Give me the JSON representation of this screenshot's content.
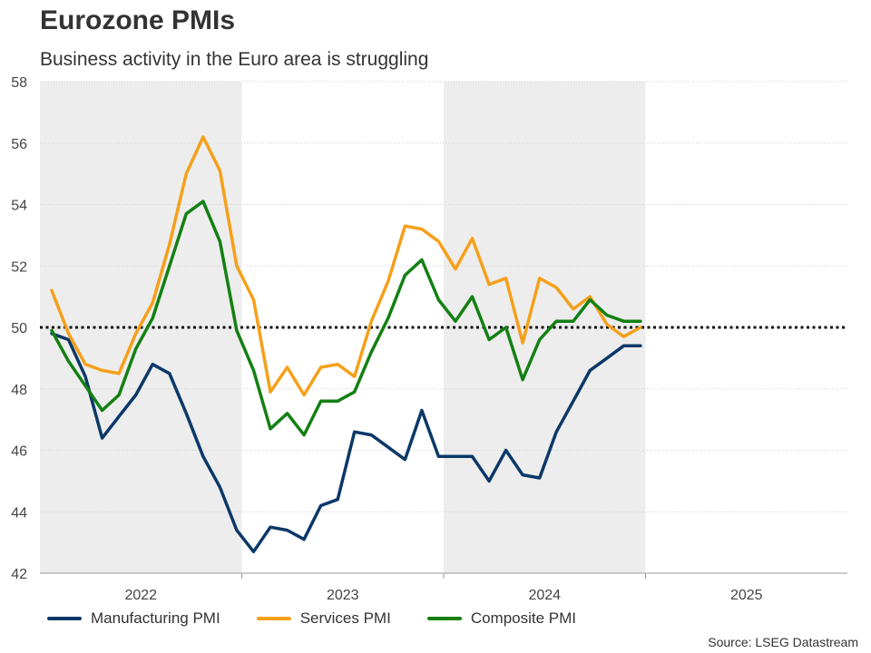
{
  "chart_data": {
    "type": "line",
    "title": "Eurozone PMIs",
    "subtitle": "Business activity in the Euro area is struggling",
    "source": "Source: LSEG Datastream",
    "ylim": [
      42,
      58
    ],
    "yticks": [
      "42",
      "44",
      "46",
      "48",
      "50",
      "52",
      "54",
      "56",
      "58"
    ],
    "x_year_labels": [
      "2022",
      "2023",
      "2024",
      "2025"
    ],
    "reference_line": 50,
    "months": [
      "2022-01",
      "2022-02",
      "2022-03",
      "2022-04",
      "2022-05",
      "2022-06",
      "2022-07",
      "2022-08",
      "2022-09",
      "2022-10",
      "2022-11",
      "2022-12",
      "2023-01",
      "2023-02",
      "2023-03",
      "2023-04",
      "2023-05",
      "2023-06",
      "2023-07",
      "2023-08",
      "2023-09",
      "2023-10",
      "2023-11",
      "2023-12",
      "2024-01",
      "2024-02",
      "2024-03",
      "2024-04",
      "2024-05",
      "2024-06",
      "2024-07",
      "2024-08",
      "2024-09",
      "2024-10",
      "2024-11",
      "2024-12",
      "2025-01",
      "2025-02",
      "2025-03",
      "2025-04",
      "2025-05",
      "2025-06",
      "2025-07",
      "2025-08",
      "2025-09",
      "2025-10",
      "2025-11",
      "2025-12"
    ],
    "series": [
      {
        "name": "Manufacturing PMI",
        "color": "#0b3868",
        "start_index": 0,
        "values": [
          49.8,
          49.6,
          48.4,
          46.4,
          47.1,
          47.8,
          48.8,
          48.5,
          47.2,
          45.8,
          44.8,
          43.4,
          42.7,
          43.5,
          43.4,
          43.1,
          44.2,
          44.4,
          46.6,
          46.5,
          46.1,
          45.7,
          47.3,
          45.8,
          45.8,
          45.8,
          45.0,
          46.0,
          45.2,
          45.1,
          46.6,
          47.6,
          48.6,
          49.0,
          49.4,
          49.4
        ]
      },
      {
        "name": "Services PMI",
        "color": "#f5a01a",
        "start_index": 0,
        "values": [
          51.2,
          49.8,
          48.8,
          48.6,
          48.5,
          49.8,
          50.8,
          52.7,
          55.0,
          56.2,
          55.1,
          52.0,
          50.9,
          47.9,
          48.7,
          47.8,
          48.7,
          48.8,
          48.4,
          50.2,
          51.5,
          53.3,
          53.2,
          52.8,
          51.9,
          52.9,
          51.4,
          51.6,
          49.5,
          51.6,
          51.3,
          50.6,
          51.0,
          50.1,
          49.7,
          50.0
        ]
      },
      {
        "name": "Composite PMI",
        "color": "#138013",
        "start_index": 0,
        "values": [
          49.9,
          48.9,
          48.1,
          47.3,
          47.8,
          49.3,
          50.3,
          52.0,
          53.7,
          54.1,
          52.8,
          49.9,
          48.6,
          46.7,
          47.2,
          46.5,
          47.6,
          47.6,
          47.9,
          49.2,
          50.3,
          51.7,
          52.2,
          50.9,
          50.2,
          51.0,
          49.6,
          50.0,
          48.3,
          49.6,
          50.2,
          50.2,
          50.9,
          50.4,
          50.2,
          50.2
        ]
      }
    ],
    "shaded_years": [
      "2022",
      "2024"
    ],
    "legend_position": "bottom"
  }
}
